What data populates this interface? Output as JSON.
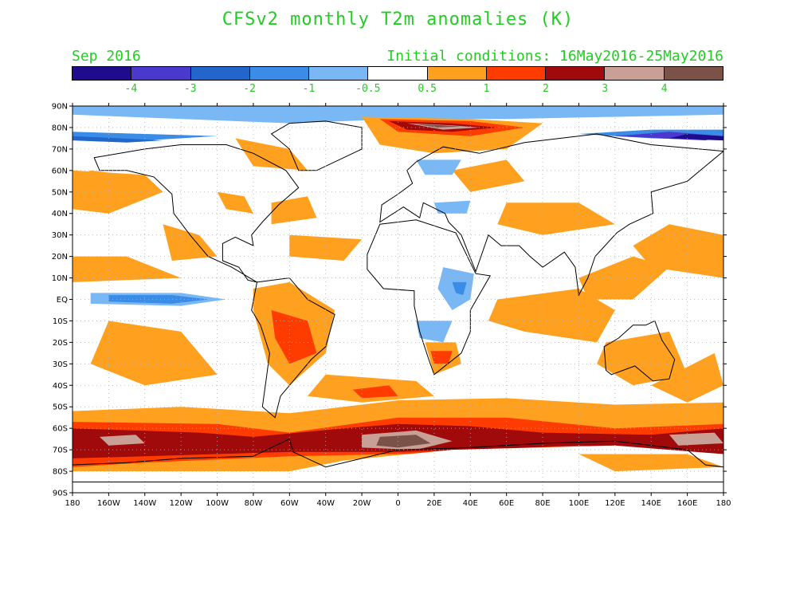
{
  "title": "CFSv2 monthly T2m anomalies (K)",
  "subtitle_left": "Sep 2016",
  "subtitle_right": "Initial conditions: 16May2016-25May2016",
  "text_color": "#22cc22",
  "colorbar": {
    "colors": [
      "#1f0c8c",
      "#4a39cc",
      "#2266cc",
      "#3a8ce6",
      "#7ab8f5",
      "#ffffff",
      "#ffa01e",
      "#ff3c00",
      "#a00a0a",
      "#c8a096",
      "#7a5248"
    ],
    "labels": [
      "-4",
      "-3",
      "-2",
      "-1",
      "-0.5",
      "0.5",
      "1",
      "2",
      "3",
      "4"
    ]
  },
  "axes": {
    "lat_labels": [
      "90N",
      "80N",
      "70N",
      "60N",
      "50N",
      "40N",
      "30N",
      "20N",
      "10N",
      "EQ",
      "10S",
      "20S",
      "30S",
      "40S",
      "50S",
      "60S",
      "70S",
      "80S",
      "90S"
    ],
    "lon_labels": [
      "180",
      "160W",
      "140W",
      "120W",
      "100W",
      "80W",
      "60W",
      "40W",
      "20W",
      "0",
      "20E",
      "40E",
      "60E",
      "80E",
      "100E",
      "120E",
      "140E",
      "160E",
      "180"
    ]
  }
}
